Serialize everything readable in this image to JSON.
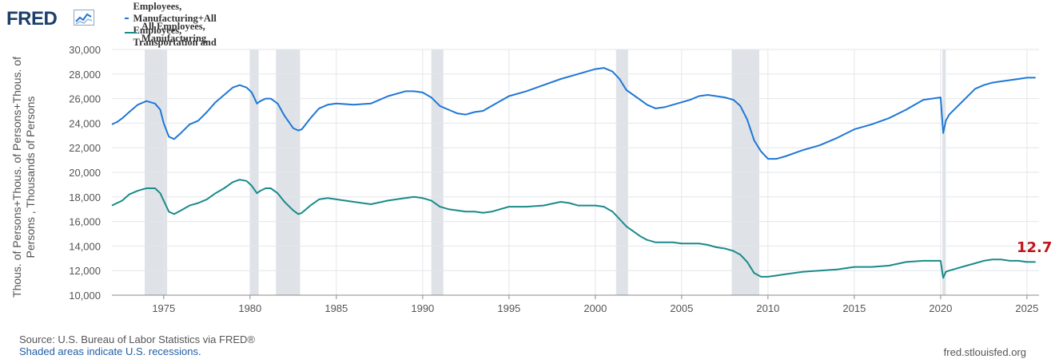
{
  "brand": {
    "name": "FRED",
    "icon": "fred-chart-icon"
  },
  "footer": {
    "source": "Source: U.S. Bureau of Labor Statistics via FRED®",
    "shaded_note": "Shaded areas indicate U.S. recessions.",
    "site": "fred.stlouisfed.org"
  },
  "last_value_label": "12.7",
  "colors": {
    "series_total": "#1f77d6",
    "series_manufacturing": "#1a8a8a",
    "recession": "#dfe3e8",
    "gridline": "#e3e6ea",
    "plot_background": "#ffffff",
    "page_background": "#ffffff",
    "last_value": "#c0161c"
  },
  "chart_data": {
    "type": "line",
    "ylabel": "Thous. of Persons+Thous. of Persons+Thous. of Persons , Thousands of Persons",
    "xlabel": "",
    "xlim": [
      1972.0,
      2025.7
    ],
    "ylim": [
      10000,
      30000
    ],
    "grid": true,
    "legend_position": "top-left",
    "x_ticks": [
      1975,
      1980,
      1985,
      1990,
      1995,
      2000,
      2005,
      2010,
      2015,
      2020,
      2025
    ],
    "y_ticks": [
      10000,
      12000,
      14000,
      16000,
      18000,
      20000,
      22000,
      24000,
      26000,
      28000,
      30000
    ],
    "y_tick_labels": [
      "10,000",
      "12,000",
      "14,000",
      "16,000",
      "18,000",
      "20,000",
      "22,000",
      "24,000",
      "26,000",
      "28,000",
      "30,000"
    ],
    "recessions": [
      [
        1973.9,
        1975.2
      ],
      [
        1980.0,
        1980.5
      ],
      [
        1981.5,
        1982.9
      ],
      [
        1990.5,
        1991.2
      ],
      [
        2001.2,
        2001.9
      ],
      [
        2007.9,
        2009.5
      ],
      [
        2020.1,
        2020.3
      ]
    ],
    "series": [
      {
        "name": "All Employees, Construction+All Employees, Manufacturing+All Employees, Transportation and Warehousing",
        "x": [
          1972.0,
          1972.3,
          1972.6,
          1973.0,
          1973.5,
          1974.0,
          1974.5,
          1974.8,
          1975.0,
          1975.3,
          1975.6,
          1976.0,
          1976.5,
          1977.0,
          1977.5,
          1978.0,
          1978.5,
          1979.0,
          1979.4,
          1979.8,
          1980.1,
          1980.4,
          1980.6,
          1980.9,
          1981.2,
          1981.6,
          1982.0,
          1982.5,
          1982.8,
          1983.0,
          1983.5,
          1984.0,
          1984.5,
          1985.0,
          1986.0,
          1987.0,
          1988.0,
          1989.0,
          1989.5,
          1990.0,
          1990.5,
          1991.0,
          1991.5,
          1992.0,
          1992.5,
          1993.0,
          1993.5,
          1994.0,
          1995.0,
          1996.0,
          1997.0,
          1998.0,
          1999.0,
          2000.0,
          2000.5,
          2001.0,
          2001.4,
          2001.8,
          2002.2,
          2002.6,
          2003.0,
          2003.5,
          2004.0,
          2004.5,
          2005.0,
          2005.5,
          2006.0,
          2006.5,
          2007.0,
          2007.5,
          2008.0,
          2008.4,
          2008.8,
          2009.2,
          2009.6,
          2010.0,
          2010.5,
          2011.0,
          2012.0,
          2013.0,
          2014.0,
          2015.0,
          2016.0,
          2017.0,
          2018.0,
          2019.0,
          2019.5,
          2020.0,
          2020.15,
          2020.3,
          2020.5,
          2021.0,
          2021.5,
          2022.0,
          2022.5,
          2023.0,
          2023.5,
          2024.0,
          2024.5,
          2025.0,
          2025.5
        ],
        "values": [
          23900,
          24100,
          24400,
          24900,
          25500,
          25800,
          25600,
          25100,
          24000,
          22900,
          22700,
          23200,
          23900,
          24200,
          24900,
          25700,
          26300,
          26900,
          27100,
          26900,
          26500,
          25600,
          25800,
          26000,
          26000,
          25600,
          24600,
          23600,
          23400,
          23500,
          24400,
          25200,
          25500,
          25600,
          25500,
          25600,
          26200,
          26600,
          26600,
          26500,
          26100,
          25400,
          25100,
          24800,
          24700,
          24900,
          25000,
          25400,
          26200,
          26600,
          27100,
          27600,
          28000,
          28400,
          28500,
          28200,
          27600,
          26700,
          26300,
          25900,
          25500,
          25200,
          25300,
          25500,
          25700,
          25900,
          26200,
          26300,
          26200,
          26100,
          25900,
          25400,
          24300,
          22600,
          21700,
          21100,
          21100,
          21300,
          21800,
          22200,
          22800,
          23500,
          23900,
          24400,
          25100,
          25900,
          26000,
          26100,
          23200,
          24200,
          24700,
          25400,
          26100,
          26800,
          27100,
          27300,
          27400,
          27500,
          27600,
          27700,
          27700
        ]
      },
      {
        "name": "All Employees, Manufacturing",
        "x": [
          1972.0,
          1972.3,
          1972.6,
          1973.0,
          1973.5,
          1974.0,
          1974.5,
          1974.8,
          1975.0,
          1975.3,
          1975.6,
          1976.0,
          1976.5,
          1977.0,
          1977.5,
          1978.0,
          1978.5,
          1979.0,
          1979.4,
          1979.8,
          1980.1,
          1980.4,
          1980.6,
          1980.9,
          1981.2,
          1981.6,
          1982.0,
          1982.5,
          1982.8,
          1983.0,
          1983.5,
          1984.0,
          1984.5,
          1985.0,
          1986.0,
          1987.0,
          1988.0,
          1989.0,
          1989.5,
          1990.0,
          1990.5,
          1991.0,
          1991.5,
          1992.0,
          1992.5,
          1993.0,
          1993.5,
          1994.0,
          1995.0,
          1996.0,
          1997.0,
          1998.0,
          1998.5,
          1999.0,
          2000.0,
          2000.5,
          2001.0,
          2001.4,
          2001.8,
          2002.2,
          2002.6,
          2003.0,
          2003.5,
          2004.0,
          2004.5,
          2005.0,
          2005.5,
          2006.0,
          2006.5,
          2007.0,
          2007.5,
          2008.0,
          2008.4,
          2008.8,
          2009.2,
          2009.6,
          2010.0,
          2010.5,
          2011.0,
          2012.0,
          2013.0,
          2014.0,
          2015.0,
          2016.0,
          2017.0,
          2018.0,
          2019.0,
          2019.5,
          2020.0,
          2020.15,
          2020.3,
          2020.5,
          2021.0,
          2021.5,
          2022.0,
          2022.5,
          2023.0,
          2023.5,
          2024.0,
          2024.5,
          2025.0,
          2025.5
        ],
        "values": [
          17300,
          17500,
          17700,
          18200,
          18500,
          18700,
          18700,
          18300,
          17700,
          16800,
          16600,
          16900,
          17300,
          17500,
          17800,
          18300,
          18700,
          19200,
          19400,
          19300,
          18900,
          18300,
          18500,
          18700,
          18700,
          18300,
          17600,
          16900,
          16600,
          16700,
          17300,
          17800,
          17900,
          17800,
          17600,
          17400,
          17700,
          17900,
          18000,
          17900,
          17700,
          17200,
          17000,
          16900,
          16800,
          16800,
          16700,
          16800,
          17200,
          17200,
          17300,
          17600,
          17500,
          17300,
          17300,
          17200,
          16800,
          16200,
          15600,
          15200,
          14800,
          14500,
          14300,
          14300,
          14300,
          14200,
          14200,
          14200,
          14100,
          13900,
          13800,
          13600,
          13300,
          12700,
          11800,
          11500,
          11500,
          11600,
          11700,
          11900,
          12000,
          12100,
          12300,
          12300,
          12400,
          12700,
          12800,
          12800,
          12800,
          11400,
          11900,
          12000,
          12200,
          12400,
          12600,
          12800,
          12900,
          12900,
          12800,
          12800,
          12700,
          12700
        ]
      }
    ]
  }
}
